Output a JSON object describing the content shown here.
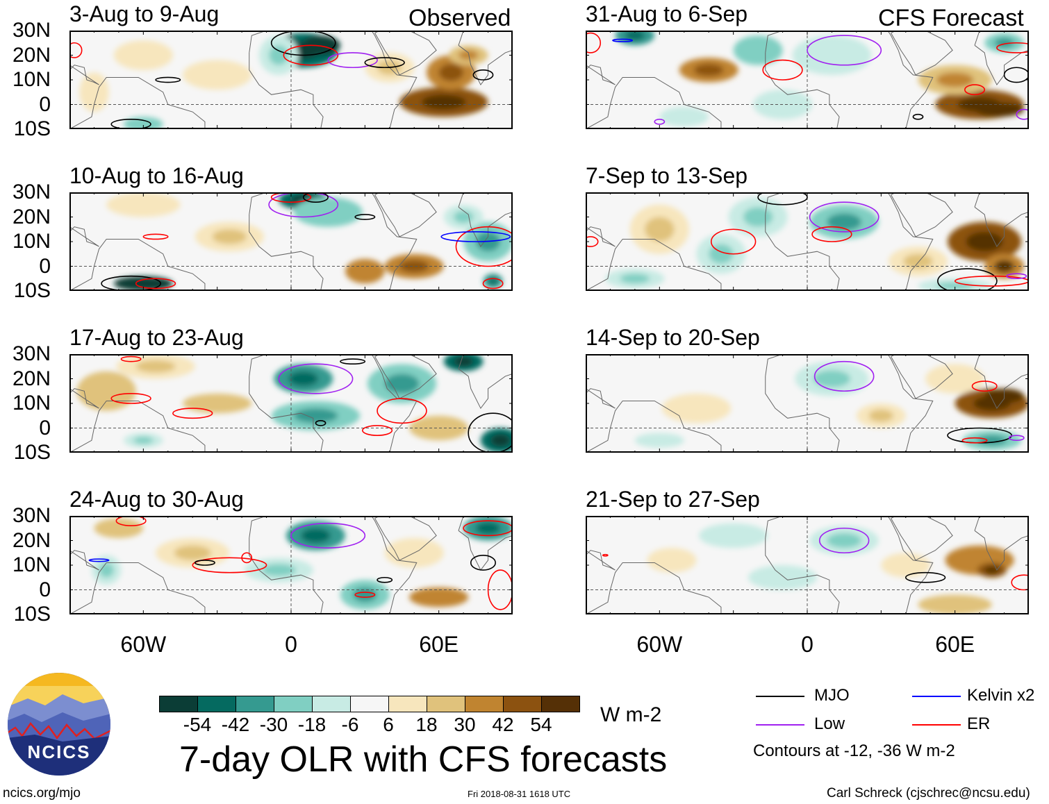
{
  "observed_label": "Observed",
  "forecast_label": "CFS Forecast",
  "lat_labels": [
    "30N",
    "20N",
    "10N",
    "0",
    "10S"
  ],
  "lon_labels": [
    "60W",
    "0",
    "60E"
  ],
  "chart_data": {
    "type": "heatmap",
    "title": "7-day OLR with CFS forecasts",
    "units": "W m-2",
    "lon_range": [
      -90,
      90
    ],
    "lat_range": [
      -10,
      30
    ],
    "colorbar": {
      "levels": [
        "-54",
        "-42",
        "-30",
        "-18",
        "-6",
        "6",
        "18",
        "30",
        "42",
        "54"
      ],
      "colors": [
        "#0b3d36",
        "#056a60",
        "#359a90",
        "#80cfc2",
        "#c8ebe4",
        "#f6f6f6",
        "#f7e6bd",
        "#e0c27c",
        "#c08430",
        "#8c5210",
        "#553006"
      ]
    },
    "contour_legend": [
      {
        "name": "MJO",
        "color": "#000000"
      },
      {
        "name": "Low",
        "color": "#a020f0"
      },
      {
        "name": "Kelvin x2",
        "color": "#0000ff"
      },
      {
        "name": "ER",
        "color": "#ff0000"
      }
    ],
    "contour_note": "Contours at -12, -36 W m-2",
    "panels": [
      {
        "title": "3-Aug to 9-Aug",
        "blobs": [
          [
            5,
            22,
            14,
            7,
            -50
          ],
          [
            12,
            24,
            8,
            4,
            -60
          ],
          [
            -5,
            20,
            8,
            8,
            -15
          ],
          [
            62,
            1,
            18,
            6,
            45
          ],
          [
            65,
            13,
            10,
            7,
            35
          ],
          [
            72,
            20,
            8,
            4,
            25
          ],
          [
            -60,
            20,
            12,
            6,
            12
          ],
          [
            -30,
            12,
            14,
            6,
            10
          ],
          [
            -60,
            -8,
            8,
            3,
            -20
          ],
          [
            40,
            15,
            10,
            6,
            15
          ],
          [
            -80,
            5,
            6,
            8,
            12
          ]
        ],
        "contours": [
          [
            5,
            25,
            13,
            5,
            "MJO"
          ],
          [
            8,
            20,
            11,
            4,
            "ER"
          ],
          [
            25,
            18,
            10,
            3,
            "Low"
          ],
          [
            38,
            17,
            8,
            2,
            "MJO"
          ],
          [
            -50,
            10,
            5,
            1,
            "MJO"
          ],
          [
            -65,
            -8,
            8,
            2,
            "MJO"
          ],
          [
            78,
            12,
            4,
            2,
            "MJO"
          ],
          [
            -88,
            22,
            3,
            3,
            "ER"
          ]
        ]
      },
      {
        "title": "10-Aug to 16-Aug",
        "blobs": [
          [
            5,
            27,
            10,
            4,
            -45
          ],
          [
            15,
            22,
            14,
            6,
            -20
          ],
          [
            -60,
            -7,
            12,
            3,
            -55
          ],
          [
            50,
            0,
            12,
            5,
            35
          ],
          [
            30,
            -2,
            8,
            5,
            30
          ],
          [
            80,
            10,
            10,
            8,
            -30
          ],
          [
            -25,
            12,
            14,
            6,
            15
          ],
          [
            -60,
            25,
            15,
            5,
            10
          ],
          [
            70,
            20,
            8,
            5,
            -15
          ],
          [
            82,
            -6,
            4,
            3,
            -40
          ]
        ],
        "contours": [
          [
            5,
            25,
            14,
            5,
            "Low"
          ],
          [
            0,
            28,
            8,
            2,
            "ER"
          ],
          [
            10,
            28,
            5,
            2,
            "MJO"
          ],
          [
            -65,
            -7,
            12,
            3,
            "MJO"
          ],
          [
            -55,
            -7,
            8,
            2,
            "ER"
          ],
          [
            80,
            8,
            13,
            8,
            "ER"
          ],
          [
            75,
            12,
            14,
            2,
            "Kelvin"
          ],
          [
            -55,
            12,
            5,
            1,
            "ER"
          ],
          [
            30,
            20,
            4,
            1,
            "MJO"
          ],
          [
            82,
            -7,
            4,
            2,
            "ER"
          ]
        ]
      },
      {
        "title": "17-Aug to 23-Aug",
        "blobs": [
          [
            5,
            20,
            12,
            6,
            -40
          ],
          [
            -75,
            15,
            12,
            8,
            20
          ],
          [
            -55,
            25,
            16,
            5,
            15
          ],
          [
            -30,
            10,
            14,
            4,
            20
          ],
          [
            10,
            5,
            18,
            6,
            -25
          ],
          [
            45,
            18,
            14,
            8,
            -25
          ],
          [
            70,
            27,
            8,
            4,
            -45
          ],
          [
            85,
            -5,
            8,
            5,
            -50
          ],
          [
            60,
            0,
            12,
            5,
            20
          ],
          [
            -60,
            -5,
            8,
            3,
            -18
          ]
        ],
        "contours": [
          [
            10,
            20,
            15,
            6,
            "Low"
          ],
          [
            -65,
            12,
            8,
            2,
            "ER"
          ],
          [
            -40,
            6,
            8,
            2,
            "ER"
          ],
          [
            45,
            7,
            10,
            5,
            "ER"
          ],
          [
            82,
            -2,
            10,
            8,
            "MJO"
          ],
          [
            35,
            -1,
            6,
            2,
            "ER"
          ],
          [
            -65,
            28,
            4,
            1,
            "ER"
          ],
          [
            25,
            27,
            5,
            1,
            "MJO"
          ],
          [
            12,
            2,
            2,
            1,
            "MJO"
          ]
        ]
      },
      {
        "title": "24-Aug to 30-Aug",
        "blobs": [
          [
            10,
            22,
            12,
            6,
            -40
          ],
          [
            80,
            25,
            10,
            5,
            -40
          ],
          [
            30,
            -2,
            10,
            6,
            -30
          ],
          [
            -70,
            25,
            10,
            4,
            20
          ],
          [
            60,
            -3,
            12,
            4,
            30
          ],
          [
            -40,
            15,
            15,
            6,
            15
          ],
          [
            50,
            15,
            12,
            6,
            12
          ],
          [
            -5,
            8,
            14,
            5,
            -18
          ],
          [
            -75,
            8,
            6,
            6,
            -15
          ]
        ],
        "contours": [
          [
            15,
            22,
            15,
            5,
            "Low"
          ],
          [
            80,
            25,
            10,
            3,
            "ER"
          ],
          [
            -25,
            10,
            15,
            3,
            "ER"
          ],
          [
            -18,
            13,
            2,
            2,
            "ER"
          ],
          [
            -35,
            11,
            4,
            1,
            "MJO"
          ],
          [
            78,
            11,
            5,
            3,
            "MJO"
          ],
          [
            38,
            4,
            3,
            1,
            "MJO"
          ],
          [
            -78,
            12,
            4,
            0.5,
            "Kelvin"
          ],
          [
            -65,
            28,
            6,
            2,
            "ER"
          ],
          [
            30,
            -2,
            4,
            1,
            "ER"
          ],
          [
            85,
            0,
            5,
            8,
            "ER"
          ]
        ]
      },
      {
        "title": "31-Aug to 6-Sep",
        "blobs": [
          [
            -40,
            14,
            12,
            5,
            35
          ],
          [
            -70,
            28,
            8,
            4,
            -35
          ],
          [
            -20,
            22,
            10,
            6,
            -20
          ],
          [
            10,
            20,
            16,
            8,
            -12
          ],
          [
            70,
            0,
            18,
            6,
            50
          ],
          [
            78,
            -2,
            10,
            3,
            55
          ],
          [
            60,
            10,
            15,
            6,
            25
          ],
          [
            80,
            25,
            8,
            4,
            -30
          ],
          [
            -10,
            0,
            12,
            6,
            -12
          ],
          [
            -50,
            -5,
            10,
            4,
            -10
          ]
        ],
        "contours": [
          [
            15,
            22,
            15,
            6,
            "Low"
          ],
          [
            -10,
            14,
            8,
            4,
            "ER"
          ],
          [
            68,
            6,
            4,
            2,
            "ER"
          ],
          [
            85,
            12,
            5,
            3,
            "MJO"
          ],
          [
            -88,
            25,
            4,
            4,
            "ER"
          ],
          [
            -75,
            26,
            4,
            0.5,
            "Kelvin"
          ],
          [
            45,
            -5,
            2,
            1,
            "MJO"
          ],
          [
            88,
            -4,
            3,
            2,
            "Low"
          ],
          [
            -60,
            -7,
            2,
            1,
            "Low"
          ],
          [
            85,
            23,
            8,
            2,
            "ER"
          ]
        ]
      },
      {
        "title": "7-Sep to 13-Sep",
        "blobs": [
          [
            -60,
            15,
            12,
            10,
            15
          ],
          [
            -20,
            20,
            12,
            8,
            -15
          ],
          [
            15,
            18,
            14,
            7,
            -30
          ],
          [
            -35,
            5,
            10,
            8,
            -15
          ],
          [
            72,
            10,
            15,
            8,
            45
          ],
          [
            80,
            0,
            8,
            5,
            40
          ],
          [
            45,
            2,
            12,
            6,
            15
          ],
          [
            -70,
            -5,
            12,
            4,
            -15
          ],
          [
            60,
            -8,
            15,
            3,
            -15
          ]
        ],
        "contours": [
          [
            15,
            20,
            14,
            6,
            "Low"
          ],
          [
            10,
            13,
            8,
            3,
            "ER"
          ],
          [
            -30,
            10,
            9,
            5,
            "ER"
          ],
          [
            -10,
            28,
            10,
            3,
            "MJO"
          ],
          [
            65,
            -6,
            12,
            5,
            "MJO"
          ],
          [
            75,
            -6,
            15,
            2,
            "ER"
          ],
          [
            -88,
            10,
            3,
            2,
            "ER"
          ],
          [
            85,
            -4,
            4,
            1,
            "Low"
          ]
        ]
      },
      {
        "title": "14-Sep to 20-Sep",
        "blobs": [
          [
            75,
            10,
            15,
            6,
            50
          ],
          [
            80,
            13,
            8,
            3,
            55
          ],
          [
            60,
            20,
            12,
            6,
            12
          ],
          [
            75,
            -5,
            12,
            4,
            -30
          ],
          [
            10,
            20,
            15,
            7,
            -15
          ],
          [
            -45,
            8,
            14,
            6,
            10
          ],
          [
            30,
            5,
            10,
            5,
            15
          ],
          [
            -60,
            -5,
            10,
            3,
            -12
          ]
        ],
        "contours": [
          [
            15,
            21,
            12,
            6,
            "Low"
          ],
          [
            70,
            -3,
            13,
            3,
            "MJO"
          ],
          [
            72,
            17,
            5,
            2,
            "ER"
          ],
          [
            68,
            -5,
            5,
            1,
            "ER"
          ],
          [
            85,
            -4,
            3,
            1,
            "Low"
          ]
        ]
      },
      {
        "title": "21-Sep to 27-Sep",
        "blobs": [
          [
            70,
            12,
            14,
            6,
            30
          ],
          [
            75,
            8,
            6,
            3,
            45
          ],
          [
            60,
            -6,
            15,
            4,
            20
          ],
          [
            15,
            20,
            14,
            6,
            -15
          ],
          [
            -30,
            22,
            14,
            5,
            -12
          ],
          [
            -10,
            5,
            14,
            5,
            -12
          ],
          [
            40,
            10,
            10,
            5,
            12
          ],
          [
            -55,
            12,
            10,
            5,
            8
          ]
        ],
        "contours": [
          [
            15,
            20,
            10,
            5,
            "Low"
          ],
          [
            48,
            5,
            8,
            2,
            "MJO"
          ],
          [
            88,
            3,
            5,
            3,
            "ER"
          ],
          [
            -82,
            14,
            1,
            0.3,
            "ER"
          ]
        ]
      }
    ]
  },
  "logo": {
    "text": "NCICS"
  },
  "footer": {
    "url": "ncics.org/mjo",
    "timestamp": "Fri 2018-08-31 1618 UTC",
    "credit": "Carl Schreck (cjschrec@ncsu.edu)"
  }
}
